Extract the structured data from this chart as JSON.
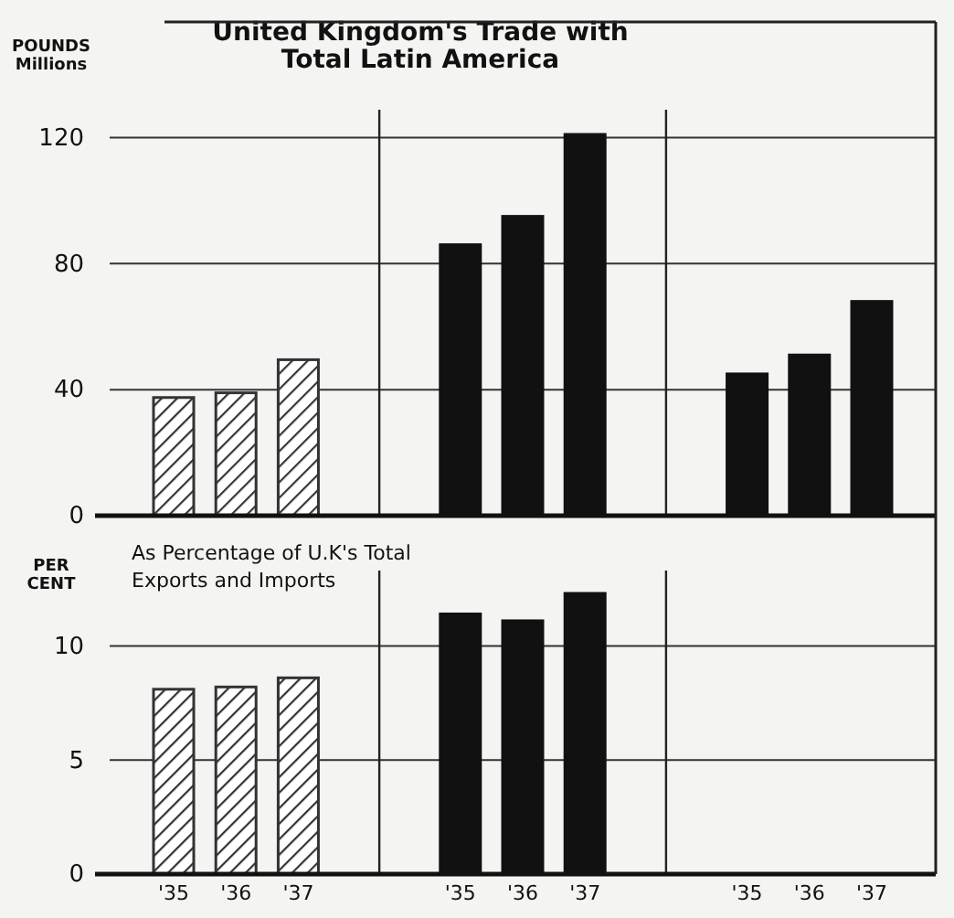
{
  "chart_data": [
    {
      "type": "bar",
      "title": "United Kingdom's Trade with Total Latin America",
      "ylabel": "POUNDS Millions",
      "categories": [
        null,
        null,
        null,
        null,
        null,
        null,
        null,
        null,
        null
      ],
      "values": [
        37.5,
        39,
        49.5,
        86,
        95,
        121,
        45,
        51,
        68
      ],
      "colors": [
        "#333333",
        "#333333",
        "#333333",
        "#111111",
        "#111111",
        "#111111",
        "#111111",
        "#111111",
        "#111111"
      ],
      "ylim": [
        0,
        130
      ],
      "yticks": [
        0,
        40,
        80,
        120
      ],
      "grid": "y",
      "tick_labels": "y"
    },
    {
      "type": "bar",
      "title": "As Percentage of U.K's Total Exports and Imports",
      "ylabel": "PER CENT",
      "categories": [
        "'35",
        "'36",
        "'37",
        "'35",
        "'36",
        "'37",
        "'35",
        "'36",
        "'37"
      ],
      "values": [
        8.1,
        8.2,
        8.6,
        11.4,
        11.1,
        12.3,
        null,
        null,
        null
      ],
      "colors": [
        "#333333",
        "#333333",
        "#333333",
        "#111111",
        "#111111",
        "#111111",
        null,
        null,
        null
      ],
      "ylim": [
        0,
        12.5
      ],
      "yticks": [
        0,
        5,
        10
      ],
      "grid": "y"
    }
  ]
}
